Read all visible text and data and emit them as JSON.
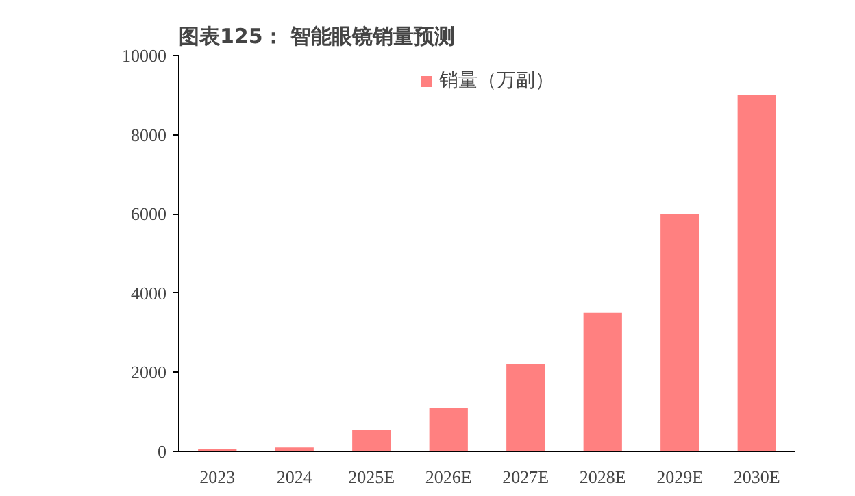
{
  "chart_data": {
    "type": "bar",
    "title": "图表125：    智能眼镜销量预测",
    "categories": [
      "2023",
      "2024",
      "2025E",
      "2026E",
      "2027E",
      "2028E",
      "2029E",
      "2030E"
    ],
    "series": [
      {
        "name": "销量（万副）",
        "color": "#ff8080",
        "values": [
          50,
          100,
          550,
          1100,
          2200,
          3500,
          6000,
          9000
        ]
      }
    ],
    "ylim": [
      0,
      10000
    ],
    "yticks": [
      0,
      2000,
      4000,
      6000,
      8000,
      10000
    ],
    "grid": false,
    "legend": "top"
  }
}
